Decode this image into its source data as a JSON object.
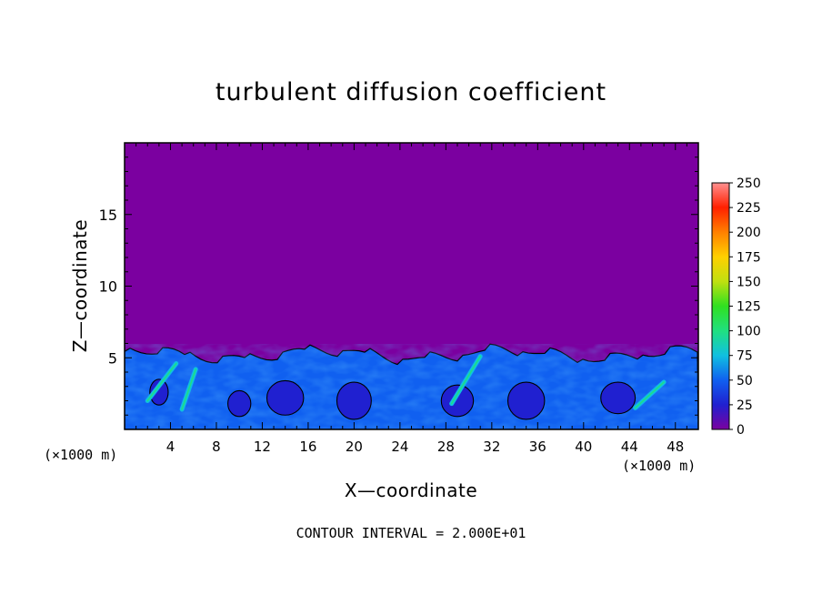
{
  "chart_data": {
    "type": "heatmap",
    "title": "turbulent diffusion coefficient",
    "xlabel": "X—coordinate",
    "ylabel": "Z—coordinate",
    "x_unit": "(×1000 m)",
    "y_unit": "(×1000 m)",
    "xlim": [
      0,
      50
    ],
    "ylim": [
      0,
      20
    ],
    "x_ticks": [
      4,
      8,
      12,
      16,
      20,
      24,
      28,
      32,
      36,
      40,
      44,
      48
    ],
    "y_ticks": [
      5,
      10,
      15
    ],
    "colorbar": {
      "ticks": [
        0,
        25,
        50,
        75,
        100,
        125,
        150,
        175,
        200,
        225,
        250
      ],
      "range": [
        0,
        250
      ],
      "stops": [
        "#7b00a0",
        "#2020d0",
        "#1060f0",
        "#10c0e0",
        "#20e080",
        "#30e020",
        "#c0e010",
        "#ffd000",
        "#ff8000",
        "#ff2000",
        "#ff9090"
      ]
    },
    "background_color": "#7b00a0",
    "boundary_layer_top_km": 5.5,
    "contour_interval": "CONTOUR INTERVAL = 2.000E+01"
  }
}
